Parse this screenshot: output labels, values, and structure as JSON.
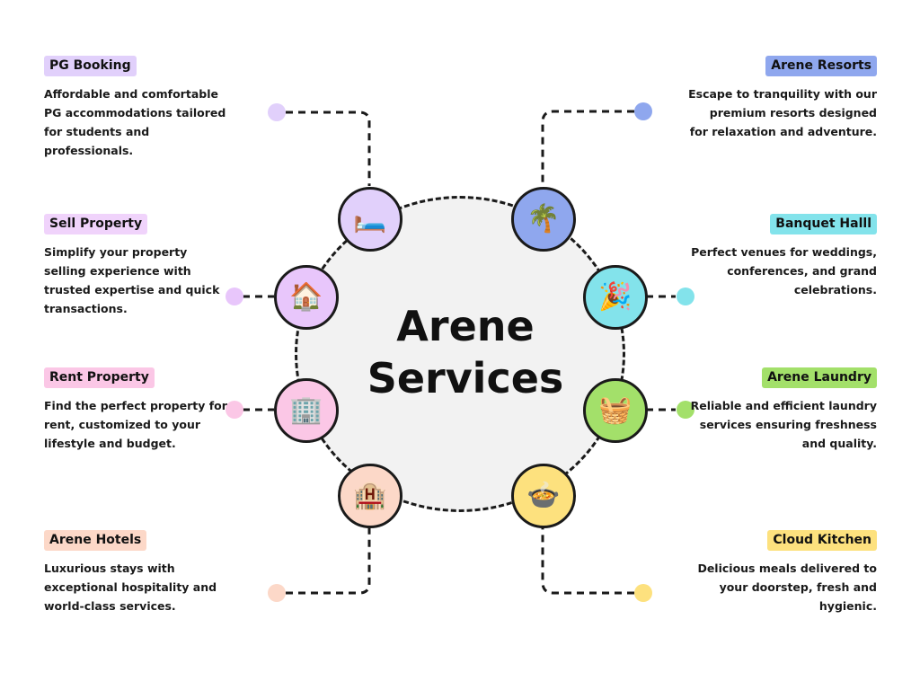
{
  "title": {
    "line1": "Arene",
    "line2": "Services"
  },
  "services": {
    "pg_booking": {
      "label": "PG Booking",
      "description": "Affordable and comfortable PG accommodations tailored for students and professionals.",
      "icon": "bed-icon",
      "glyph": "🛏️",
      "color": "#e1d0fb",
      "badge_color": "#e1d0fb"
    },
    "sell_property": {
      "label": "Sell Property",
      "description": "Simplify your property selling experience with trusted expertise and quick transactions.",
      "icon": "house-icon",
      "glyph": "🏠",
      "color": "#e8c6fb",
      "badge_color": "#f0d3fb"
    },
    "rent_property": {
      "label": "Rent Property",
      "description": "Find the perfect property for rent, customized to your lifestyle and budget.",
      "icon": "building-icon",
      "glyph": "🏢",
      "color": "#fbc7e6",
      "badge_color": "#fbc7e6"
    },
    "arene_hotels": {
      "label": "Arene Hotels",
      "description": "Luxurious stays with exceptional hospitality and world-class services.",
      "icon": "hotel-icon",
      "glyph": "🏨",
      "color": "#fcd8c8",
      "badge_color": "#fcd8c8"
    },
    "arene_resorts": {
      "label": "Arene Resorts",
      "description": "Escape to tranquility with our premium resorts designed for relaxation and adventure.",
      "icon": "palm-tree-icon",
      "glyph": "🌴",
      "color": "#8fa7ee",
      "badge_color": "#8fa7ee"
    },
    "banquet_hall": {
      "label": "Banquet Halll",
      "description": "Perfect venues for weddings, conferences, and grand celebrations.",
      "icon": "party-popper-icon",
      "glyph": "🎉",
      "color": "#83e3eb",
      "badge_color": "#83e3eb"
    },
    "arene_laundry": {
      "label": "Arene Laundry",
      "description": "Reliable and efficient laundry services ensuring freshness and quality.",
      "icon": "basket-icon",
      "glyph": "🧺",
      "color": "#a3e06a",
      "badge_color": "#a3e06a"
    },
    "cloud_kitchen": {
      "label": "Cloud Kitchen",
      "description": "Delicious meals delivered to your doorstep, fresh and hygienic.",
      "icon": "food-bowl-icon",
      "glyph": "🍲",
      "color": "#fde17e",
      "badge_color": "#fde17e"
    }
  },
  "colors": {
    "center_fill": "#f2f2f2",
    "outline": "#1a1a1a",
    "text": "#111111"
  }
}
